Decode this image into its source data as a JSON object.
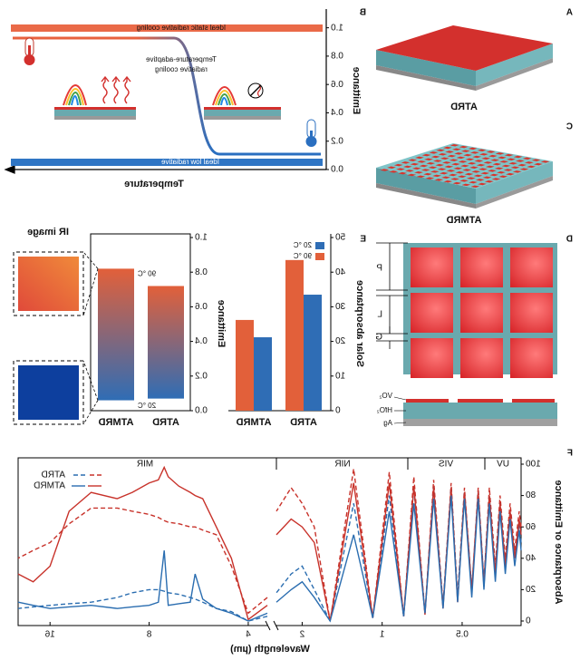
{
  "figure": {
    "panel_labels": [
      "A",
      "B",
      "C",
      "D",
      "E",
      "F"
    ],
    "a_label": "ATRD",
    "c_label": "ATMRD",
    "d_dims": [
      "P",
      "L",
      "G"
    ],
    "d_layers": [
      "VO₂",
      "HfO₂",
      "Ag"
    ],
    "ir_label": "IR image"
  },
  "schematic_b": {
    "y_label": "Emittance",
    "x_label": "Temperature",
    "ylim": [
      0,
      1.1
    ],
    "yticks": [
      {
        "value": 0,
        "label": "0.0"
      },
      0.2,
      0.4,
      0.6,
      0.8,
      {
        "value": 1,
        "label": "1.0"
      }
    ],
    "static_label": "Ideal static radiative cooling",
    "low_label": "Ideal low radiative",
    "adaptive_label": [
      "Temperature-adaptive",
      "radiative cooling"
    ]
  },
  "chart_data": [
    {
      "type": "bar",
      "y_label": "Solar absorptance",
      "categories": [
        "ATRD",
        "ATMRD"
      ],
      "series": [
        {
          "name": "20 °C",
          "color": "#2f6db5",
          "values": [
            33.5,
            21.2
          ]
        },
        {
          "name": "90 °C",
          "color": "#e2603a",
          "values": [
            43.5,
            26.2
          ]
        }
      ],
      "ylim": [
        0,
        50
      ],
      "yticks": [
        0,
        10,
        20,
        30,
        40,
        50
      ],
      "legend": "upper left"
    },
    {
      "type": "range_bar",
      "y_label": "Emittance",
      "categories": [
        "ATRD",
        "ATMRD"
      ],
      "low": [
        0.07,
        0.06
      ],
      "high": [
        0.72,
        0.82
      ],
      "low_label": "20 °C",
      "high_label": "90 °C",
      "colors": {
        "low": "#2f6db5",
        "high": "#e2603a"
      },
      "ylim": [
        0,
        1
      ],
      "yticks": [
        {
          "value": 0,
          "label": "0.0"
        },
        0.2,
        0.4,
        0.6,
        0.8,
        {
          "value": 1,
          "label": "1.0"
        }
      ]
    },
    {
      "type": "line",
      "x_label": "Wavelength (µm)",
      "y_label": "Absorptance or Emittance",
      "xscale": "log",
      "bands": [
        "UV",
        "VIS",
        "NIR",
        "MIR"
      ],
      "segments": [
        {
          "xlim": [
            0.3,
            2.5
          ],
          "xticks": [
            0.5,
            1,
            2
          ],
          "x": [
            0.3,
            0.305,
            0.317,
            0.33,
            0.344,
            0.36,
            0.375,
            0.395,
            0.414,
            0.435,
            0.46,
            0.49,
            0.52,
            0.55,
            0.59,
            0.64,
            0.69,
            0.76,
            0.83,
            0.94,
            1.085,
            1.28,
            1.57,
            1.8,
            2.0,
            2.2,
            2.5
          ]
        },
        {
          "xlim": [
            3.5,
            20
          ],
          "xticks": [
            4,
            8,
            16
          ],
          "x": [
            3.5,
            4,
            4.5,
            5,
            5.5,
            5.8,
            6,
            6.5,
            7,
            7.2,
            7.5,
            8,
            9,
            10,
            12,
            14,
            16,
            18,
            20
          ]
        }
      ],
      "series": [
        {
          "name": "ATRD",
          "dash": true,
          "lines": [
            {
              "color": "#c8322a",
              "values": [
                [
                  60,
                  70,
                  45,
                  75,
                  40,
                  80,
                  35,
                  85,
                  25,
                  85,
                  20,
                  85,
                  15,
                  88,
                  10,
                  90,
                  5,
                  92,
                  3,
                  95,
                  2,
                  97,
                  0,
                  60,
                  75,
                  85,
                  70
                ],
                [
                  15,
                  5,
                  35,
                  55,
                  58,
                  60,
                  60,
                  62,
                  63,
                  64,
                  66,
                  68,
                  70,
                  72,
                  72,
                  62,
                  50,
                  45,
                  40
                ]
              ]
            },
            {
              "color": "#2a6db0",
              "values": [
                [
                  50,
                  62,
                  40,
                  70,
                  35,
                  75,
                  30,
                  80,
                  25,
                  82,
                  20,
                  82,
                  15,
                  85,
                  10,
                  85,
                  5,
                  85,
                  3,
                  80,
                  2,
                  75,
                  0,
                  20,
                  35,
                  30,
                  18
                ],
                [
                  3,
                  0,
                  6,
                  8,
                  12,
                  14,
                  15,
                  17,
                  18,
                  19,
                  20,
                  20,
                  18,
                  15,
                  12,
                  11,
                  10,
                  9,
                  8
                ]
              ]
            }
          ]
        },
        {
          "name": "ATMRD",
          "dash": false,
          "lines": [
            {
              "color": "#c8322a",
              "values": [
                [
                  55,
                  65,
                  40,
                  70,
                  35,
                  75,
                  30,
                  80,
                  22,
                  82,
                  18,
                  82,
                  12,
                  85,
                  8,
                  85,
                  4,
                  86,
                  3,
                  88,
                  2,
                  88,
                  0,
                  50,
                  60,
                  65,
                  55
                ],
                [
                  10,
                  1,
                  40,
                  60,
                  78,
                  80,
                  82,
                  86,
                  92,
                  98,
                  90,
                  88,
                  82,
                  78,
                  82,
                  70,
                  35,
                  25,
                  30
                ]
              ]
            },
            {
              "color": "#2a6db0",
              "values": [
                [
                  45,
                  58,
                  35,
                  65,
                  30,
                  70,
                  25,
                  75,
                  20,
                  78,
                  15,
                  78,
                  12,
                  80,
                  8,
                  78,
                  5,
                  75,
                  3,
                  70,
                  2,
                  55,
                  0,
                  15,
                  25,
                  20,
                  12
                ],
                [
                  5,
                  0,
                  5,
                  8,
                  14,
                  30,
                  12,
                  11,
                  10,
                  45,
                  12,
                  10,
                  9,
                  8,
                  10,
                  9,
                  8,
                  10,
                  12
                ]
              ]
            }
          ]
        }
      ],
      "ylim": [
        0,
        100
      ],
      "yticks": [
        0,
        20,
        40,
        60,
        80,
        100
      ],
      "legend": "upper right"
    }
  ]
}
